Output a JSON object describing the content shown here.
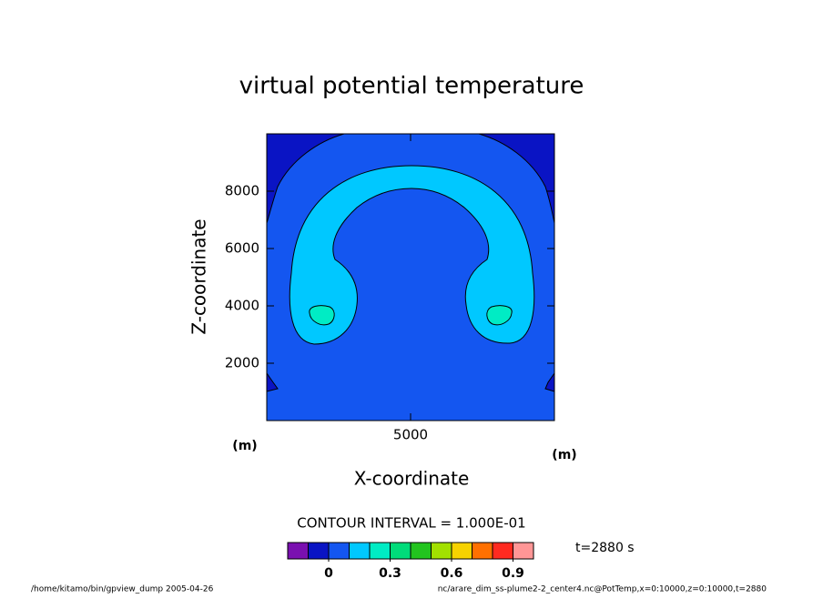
{
  "chart_data": {
    "type": "contour",
    "title": "virtual potential temperature",
    "xlabel": "X-coordinate",
    "ylabel": "Z-coordinate",
    "xunit": "(m)",
    "yunit": "(m)",
    "xlim": [
      0,
      10000
    ],
    "xticks": [
      5000
    ],
    "ylim": [
      0,
      10000
    ],
    "yticks": [
      2000,
      4000,
      6000,
      8000
    ],
    "contour_interval": "CONTOUR INTERVAL = 1.000E-01",
    "time": "t=2880 s",
    "footer_left": "/home/kitamo/bin/gpview_dump  2005-04-26",
    "footer_right": "nc/arare_dim_ss-plume2-2_center4.nc@PotTemp,x=0:10000,z=0:10000,t=2880",
    "colorbar": {
      "levels": [
        -0.2,
        -0.1,
        0,
        0.1,
        0.2,
        0.3,
        0.4,
        0.5,
        0.6,
        0.7,
        0.8,
        0.9,
        1.0
      ],
      "colors": [
        "#7a10b0",
        "#0a14c4",
        "#1456f0",
        "#00c8ff",
        "#00ecc4",
        "#00dc7a",
        "#22c41e",
        "#a2e000",
        "#f6d200",
        "#ff7000",
        "#ff2a20",
        "#ff9696"
      ],
      "ticks": [
        0,
        0.3,
        0.6,
        0.9
      ]
    }
  }
}
